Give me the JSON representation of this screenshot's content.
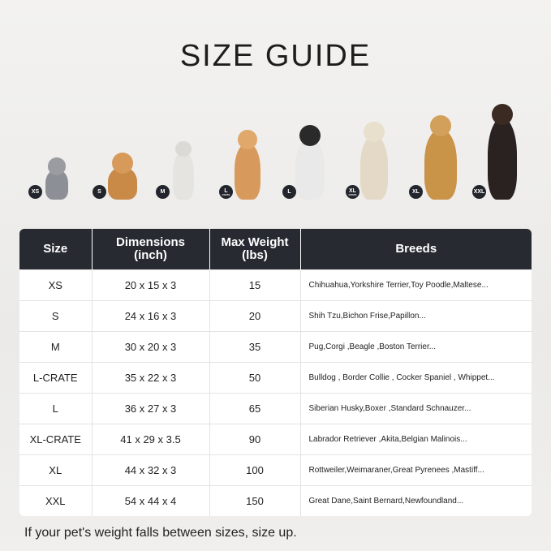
{
  "title": "SIZE GUIDE",
  "badges": [
    {
      "main": "XS",
      "sub": ""
    },
    {
      "main": "S",
      "sub": ""
    },
    {
      "main": "M",
      "sub": ""
    },
    {
      "main": "L",
      "sub": "CRATE"
    },
    {
      "main": "L",
      "sub": ""
    },
    {
      "main": "XL",
      "sub": "CRATE"
    },
    {
      "main": "XL",
      "sub": ""
    },
    {
      "main": "XXL",
      "sub": ""
    }
  ],
  "table": {
    "headers": [
      "Size",
      "Dimensions (inch)",
      "Max Weight (lbs)",
      "Breeds"
    ],
    "header_lines": [
      [
        "Size",
        ""
      ],
      [
        "Dimensions",
        "(inch)"
      ],
      [
        "Max Weight",
        "(lbs)"
      ],
      [
        "Breeds",
        ""
      ]
    ],
    "rows": [
      [
        "XS",
        "20 x 15 x 3",
        "15",
        "Chihuahua,Yorkshire Terrier,Toy Poodle,Maltese..."
      ],
      [
        "S",
        "24 x 16 x 3",
        "20",
        "Shih Tzu,Bichon Frise,Papillon..."
      ],
      [
        "M",
        "30 x 20 x 3",
        "35",
        "Pug,Corgi ,Beagle ,Boston Terrier..."
      ],
      [
        "L-CRATE",
        "35 x 22 x 3",
        "50",
        "Bulldog , Border Collie , Cocker Spaniel , Whippet..."
      ],
      [
        "L",
        "36 x 27 x 3",
        "65",
        "Siberian Husky,Boxer ,Standard Schnauzer..."
      ],
      [
        "XL-CRATE",
        "41 x 29 x 3.5",
        "90",
        "Labrador Retriever ,Akita,Belgian Malinois..."
      ],
      [
        "XL",
        "44 x 32 x 3",
        "100",
        "Rottweiler,Weimaraner,Great Pyrenees ,Mastiff..."
      ],
      [
        "XXL",
        "54 x 44 x 4",
        "150",
        "Great Dane,Saint Bernard,Newfoundland..."
      ]
    ]
  },
  "footer": "If your pet's weight falls between sizes, size up.",
  "colors": {
    "header_bg": "#272a31",
    "badge_bg": "#22252b"
  }
}
